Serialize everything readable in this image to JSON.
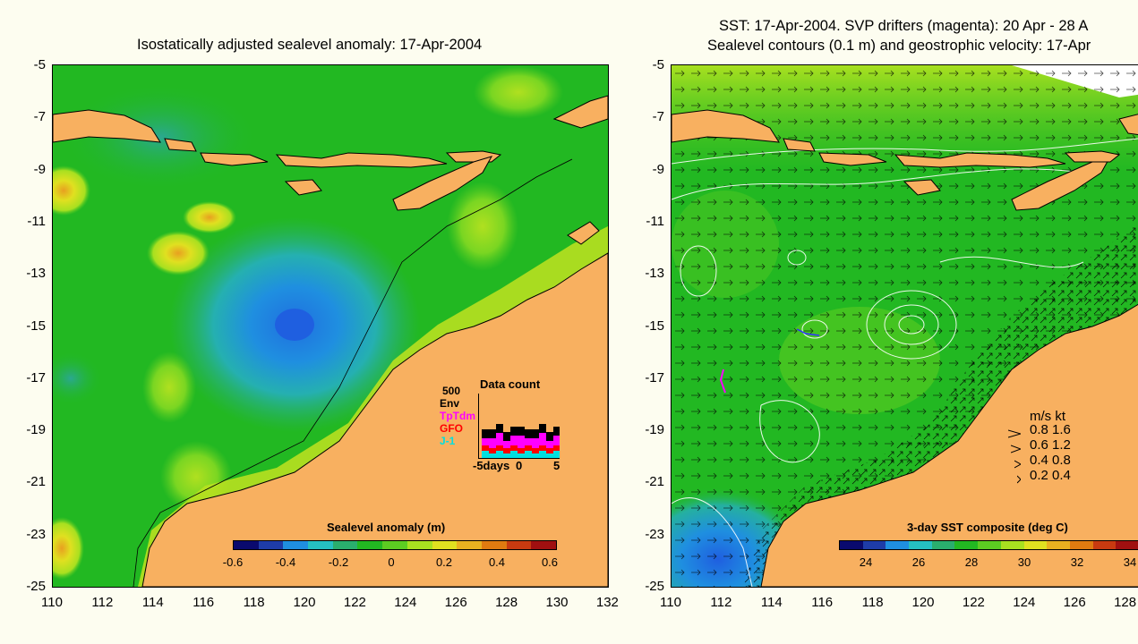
{
  "left_panel": {
    "title": "Isostatically adjusted sealevel anomaly: 17-Apr-2004",
    "y_ticks": [
      "-5",
      "-7",
      "-9",
      "-11",
      "-13",
      "-15",
      "-17",
      "-19",
      "-21",
      "-23",
      "-25"
    ],
    "x_ticks": [
      "110",
      "112",
      "114",
      "116",
      "118",
      "120",
      "122",
      "124",
      "126",
      "128",
      "130",
      "132"
    ],
    "colorbar": {
      "title": "Sealevel anomaly (m)",
      "ticks": [
        "-0.6",
        "-0.4",
        "-0.2",
        "0",
        "0.2",
        "0.4",
        "0.6"
      ],
      "colors": [
        "#0a0a6e",
        "#1e3ca8",
        "#1f8fe0",
        "#25c0c0",
        "#2aae6e",
        "#22b822",
        "#5ccc22",
        "#a8e020",
        "#e0e020",
        "#e8b020",
        "#e07a10",
        "#c83a10",
        "#a01010"
      ]
    },
    "data_count": {
      "max_label": "500",
      "title": "Data count",
      "sources": [
        {
          "name": "Env",
          "color": "#000000"
        },
        {
          "name": "TpTdm",
          "color": "#ff00ff"
        },
        {
          "name": "GFO",
          "color": "#ff0000"
        },
        {
          "name": "J-1",
          "color": "#00e0e0"
        }
      ],
      "x_labels": [
        "-5days",
        "0",
        "5"
      ]
    }
  },
  "right_panel": {
    "title_line1": "SST: 17-Apr-2004. SVP drifters (magenta): 20 Apr - 28 A",
    "title_line2": "Sealevel contours (0.1 m) and geostrophic velocity: 17-Apr",
    "y_ticks": [
      "-5",
      "-7",
      "-9",
      "-11",
      "-13",
      "-15",
      "-17",
      "-19",
      "-21",
      "-23",
      "-25"
    ],
    "x_ticks": [
      "110",
      "112",
      "114",
      "116",
      "118",
      "120",
      "122",
      "124",
      "126",
      "128"
    ],
    "colorbar": {
      "title": "3-day SST composite (deg C)",
      "ticks": [
        "24",
        "26",
        "28",
        "30",
        "32",
        "34"
      ],
      "colors": [
        "#0a0a6e",
        "#1e3ca8",
        "#1f8fe0",
        "#25c0c0",
        "#2aae6e",
        "#22b822",
        "#5ccc22",
        "#a8e020",
        "#e0e020",
        "#e8b020",
        "#e07a10",
        "#c83a10",
        "#a01010"
      ]
    },
    "velocity_scale": {
      "header": "m/s  kt",
      "rows": [
        "0.8  1.6",
        "0.6  1.2",
        "0.4  0.8",
        "0.2  0.4"
      ]
    }
  },
  "colors": {
    "land": "#f8b060",
    "ocean_base": "#22b822",
    "background": "#fdfdf0"
  }
}
